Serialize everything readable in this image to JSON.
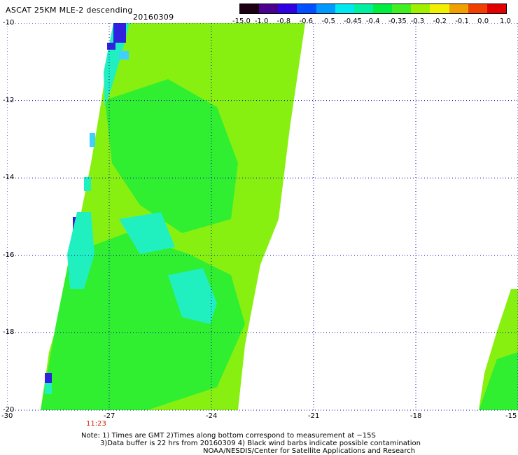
{
  "header": {
    "title": "ASCAT 25KM MLE-2 descending",
    "date": "20160309"
  },
  "colorbar": {
    "ticks": [
      "-15.0",
      "-1.0",
      "-0.8",
      "-0.6",
      "-0.5",
      "-0.45",
      "-0.4",
      "-0.35",
      "-0.3",
      "-0.2",
      "-0.1",
      "0.0",
      "1.0"
    ],
    "colors": [
      "#1a0010",
      "#4a008c",
      "#2f00e0",
      "#0050ff",
      "#009aff",
      "#00e8f0",
      "#00f0a0",
      "#00ee40",
      "#40f020",
      "#a0f000",
      "#f0f000",
      "#f0a000",
      "#f04000",
      "#e00000"
    ]
  },
  "map": {
    "y_ticks": [
      "-10",
      "-12",
      "-14",
      "-16",
      "-18",
      "-20"
    ],
    "x_ticks": [
      "-30",
      "-27",
      "-24",
      "-21",
      "-18",
      "-15"
    ],
    "time_label": "11:23",
    "swath_colors": {
      "main": "#88f010",
      "green": "#30ee30",
      "cyan": "#20f0c0",
      "lightblue": "#40d0ff",
      "blue": "#3020e0",
      "time": "#cc2200"
    }
  },
  "notes": {
    "line1": "Note: 1) Times are GMT 2)Times along bottom correspond to measurement at −15S",
    "line2": "3)Data buffer is 22 hrs from 20160309 4) Black wind barbs indicate possible contamination",
    "line3": "NOAA/NESDIS/Center for Satellite Applications and Research"
  }
}
